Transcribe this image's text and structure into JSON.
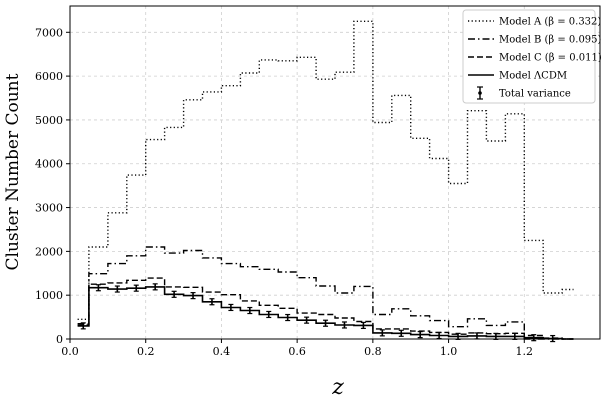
{
  "chart_data": {
    "type": "line",
    "xlabel": "z",
    "ylabel": "Cluster Number Count",
    "xlim": [
      0.0,
      1.4
    ],
    "ylim": [
      0,
      7600
    ],
    "xticks": [
      "0.0",
      "0.2",
      "0.4",
      "0.6",
      "0.8",
      "1.0",
      "1.2"
    ],
    "yticks": [
      "0",
      "1000",
      "2000",
      "3000",
      "4000",
      "5000",
      "6000",
      "7000"
    ],
    "grid": true,
    "legend_position": "top-right",
    "bin_edges": [
      0.02,
      0.05,
      0.1,
      0.15,
      0.2,
      0.25,
      0.3,
      0.35,
      0.4,
      0.45,
      0.5,
      0.55,
      0.6,
      0.65,
      0.7,
      0.75,
      0.8,
      0.85,
      0.9,
      0.95,
      1.0,
      1.05,
      1.1,
      1.15,
      1.2,
      1.25,
      1.3,
      1.33
    ],
    "series": [
      {
        "name": "Model A (β = 0.332)",
        "style": "dotted",
        "values": [
          450,
          2100,
          2880,
          3740,
          4550,
          4830,
          5460,
          5640,
          5780,
          6070,
          6370,
          6350,
          6430,
          5930,
          6090,
          7250,
          4940,
          5560,
          4580,
          4120,
          3550,
          5210,
          4520,
          5140,
          2250,
          1050,
          1130
        ]
      },
      {
        "name": "Model B (β = 0.095)",
        "style": "dashdot",
        "values": [
          350,
          1490,
          1720,
          1900,
          2100,
          1960,
          2020,
          1850,
          1720,
          1650,
          1590,
          1530,
          1400,
          1210,
          1050,
          1200,
          560,
          690,
          530,
          420,
          280,
          460,
          310,
          390,
          0,
          0,
          0
        ]
      },
      {
        "name": "Model C (β = 0.011)",
        "style": "dashed",
        "values": [
          320,
          1250,
          1280,
          1340,
          1390,
          1190,
          1180,
          1070,
          1010,
          870,
          770,
          700,
          590,
          560,
          480,
          400,
          230,
          230,
          180,
          150,
          110,
          140,
          120,
          130,
          80,
          20,
          0
        ]
      },
      {
        "name": "Model ΛCDM",
        "style": "solid",
        "values": [
          300,
          1170,
          1140,
          1160,
          1190,
          1020,
          990,
          850,
          720,
          650,
          560,
          490,
          430,
          360,
          320,
          310,
          140,
          130,
          100,
          80,
          60,
          70,
          60,
          60,
          30,
          10,
          0
        ]
      }
    ],
    "errorbar_name": "Total variance"
  },
  "colors": {
    "line": "#000000",
    "grid": "#cfcfcf",
    "background": "#ffffff"
  }
}
